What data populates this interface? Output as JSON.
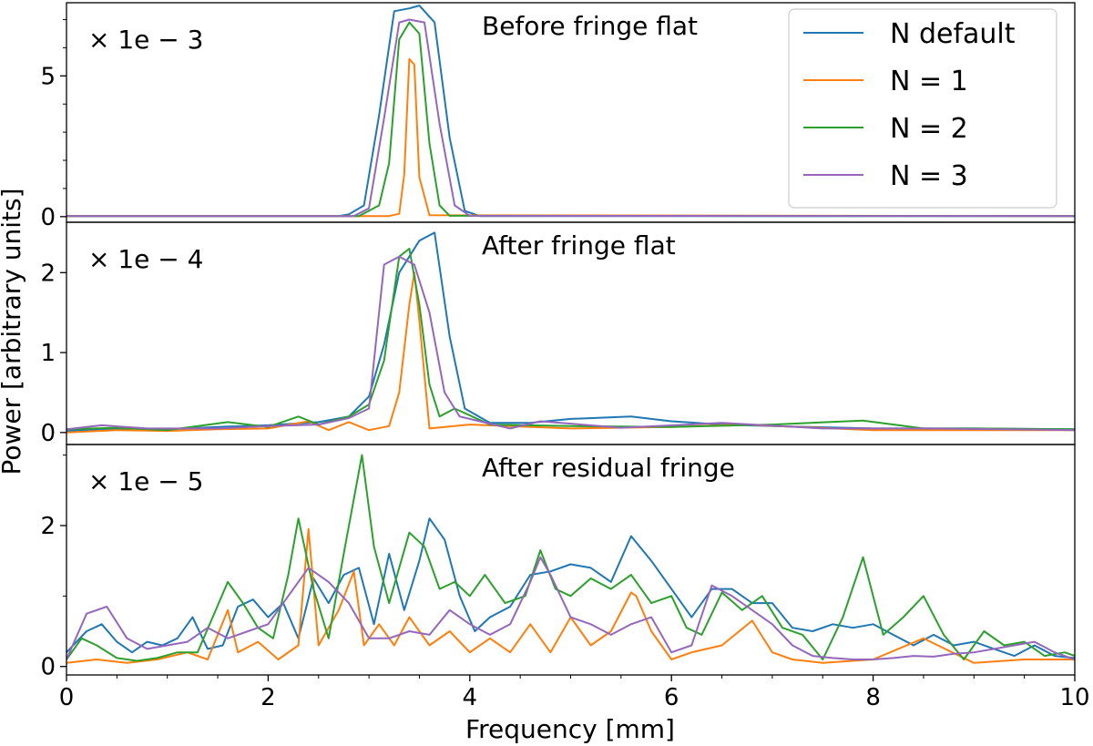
{
  "chart_data": {
    "type": "line",
    "xlabel": "Frequency [mm]",
    "ylabel": "Power [arbitrary units]",
    "xlim": [
      0,
      10
    ],
    "xticks": [
      0,
      2,
      4,
      6,
      8,
      10
    ],
    "xtick_labels": [
      "0",
      "2",
      "4",
      "6",
      "8",
      "10"
    ],
    "legend": {
      "location": "top-right",
      "entries": [
        {
          "name": "N default",
          "color": "#1f77b4"
        },
        {
          "name": "N = 1",
          "color": "#ff7f0e"
        },
        {
          "name": "N = 2",
          "color": "#2ca02c"
        },
        {
          "name": "N = 3",
          "color": "#9467bd"
        }
      ]
    },
    "panels": [
      {
        "title": "Before fringe flat",
        "scale_label": "× 1e − 3",
        "ylim": [
          -0.2,
          7.6
        ],
        "yticks": [
          0,
          5
        ],
        "ytick_labels": [
          "0",
          "5"
        ],
        "series": [
          {
            "name": "N default",
            "color": "#1f77b4",
            "x": [
              0,
              2.7,
              2.8,
              2.95,
              3.1,
              3.25,
              3.4,
              3.5,
              3.65,
              3.8,
              3.95,
              4.1,
              10
            ],
            "y": [
              0.02,
              0.02,
              0.08,
              0.4,
              3.6,
              7.3,
              7.4,
              7.5,
              6.9,
              2.8,
              0.2,
              0.02,
              0.02
            ]
          },
          {
            "name": "N = 1",
            "color": "#ff7f0e",
            "x": [
              0,
              3.2,
              3.3,
              3.35,
              3.4,
              3.45,
              3.5,
              3.6,
              10
            ],
            "y": [
              0.02,
              0.02,
              0.1,
              1.5,
              5.6,
              5.4,
              1.4,
              0.05,
              0.02
            ]
          },
          {
            "name": "N = 2",
            "color": "#2ca02c",
            "x": [
              0,
              2.9,
              3.1,
              3.2,
              3.3,
              3.4,
              3.5,
              3.6,
              3.7,
              3.8,
              10
            ],
            "y": [
              0.02,
              0.02,
              0.4,
              1.9,
              6.3,
              6.9,
              6.5,
              2.6,
              0.4,
              0.03,
              0.02
            ]
          },
          {
            "name": "N = 3",
            "color": "#9467bd",
            "x": [
              0,
              2.85,
              3.0,
              3.15,
              3.3,
              3.4,
              3.55,
              3.7,
              3.85,
              4.0,
              10
            ],
            "y": [
              0.02,
              0.02,
              0.3,
              3.5,
              6.9,
              7.0,
              6.9,
              3.3,
              0.4,
              0.03,
              0.02
            ]
          }
        ]
      },
      {
        "title": "After fringe flat",
        "scale_label": "× 1e − 4",
        "ylim": [
          -0.15,
          2.63
        ],
        "yticks": [
          0,
          1,
          2
        ],
        "ytick_labels": [
          "0",
          "1",
          "2"
        ],
        "series": [
          {
            "name": "N default",
            "color": "#1f77b4",
            "x": [
              0,
              0.5,
              1.0,
              1.5,
              2.0,
              2.5,
              2.8,
              3.0,
              3.15,
              3.3,
              3.5,
              3.65,
              3.8,
              3.95,
              4.2,
              4.6,
              5.0,
              5.6,
              6.0,
              6.5,
              7.0,
              8.0,
              9.0,
              10
            ],
            "y": [
              0.02,
              0.05,
              0.04,
              0.07,
              0.09,
              0.13,
              0.2,
              0.45,
              1.1,
              2.0,
              2.4,
              2.5,
              1.2,
              0.3,
              0.12,
              0.12,
              0.17,
              0.2,
              0.14,
              0.1,
              0.08,
              0.05,
              0.05,
              0.04
            ]
          },
          {
            "name": "N = 1",
            "color": "#ff7f0e",
            "x": [
              0,
              0.5,
              1.0,
              1.5,
              2.0,
              2.4,
              2.6,
              2.8,
              3.0,
              3.2,
              3.3,
              3.4,
              3.45,
              3.5,
              3.6,
              4.0,
              5.0,
              6.0,
              6.7,
              8.0,
              9.0,
              10
            ],
            "y": [
              0.0,
              0.03,
              0.02,
              0.04,
              0.05,
              0.14,
              0.03,
              0.13,
              0.03,
              0.08,
              0.5,
              1.6,
              2.0,
              1.4,
              0.05,
              0.1,
              0.05,
              0.07,
              0.1,
              0.03,
              0.03,
              0.03
            ]
          },
          {
            "name": "N = 2",
            "color": "#2ca02c",
            "x": [
              0,
              0.5,
              1.0,
              1.6,
              2.0,
              2.3,
              2.5,
              2.8,
              3.0,
              3.15,
              3.3,
              3.4,
              3.5,
              3.6,
              3.7,
              3.85,
              4.2,
              5.0,
              6.0,
              7.0,
              7.9,
              8.5,
              9.0,
              10
            ],
            "y": [
              0.04,
              0.06,
              0.03,
              0.13,
              0.07,
              0.2,
              0.1,
              0.2,
              0.35,
              0.9,
              2.2,
              2.3,
              1.6,
              0.6,
              0.2,
              0.3,
              0.1,
              0.08,
              0.07,
              0.1,
              0.15,
              0.05,
              0.05,
              0.04
            ]
          },
          {
            "name": "N = 3",
            "color": "#9467bd",
            "x": [
              0,
              0.35,
              0.8,
              1.5,
              2.0,
              2.5,
              2.8,
              3.0,
              3.15,
              3.3,
              3.45,
              3.6,
              3.75,
              3.9,
              4.4,
              4.7,
              5.5,
              6.5,
              7.5,
              8.5,
              10
            ],
            "y": [
              0.04,
              0.09,
              0.05,
              0.05,
              0.08,
              0.1,
              0.18,
              0.3,
              2.1,
              2.2,
              2.1,
              1.5,
              0.5,
              0.2,
              0.05,
              0.14,
              0.06,
              0.12,
              0.05,
              0.05,
              0.03
            ]
          }
        ]
      },
      {
        "title": "After residual fringe",
        "scale_label": "× 1e − 5",
        "ylim": [
          -0.12,
          3.15
        ],
        "yticks": [
          0,
          2
        ],
        "ytick_labels": [
          "0",
          "2"
        ],
        "series": [
          {
            "name": "N default",
            "color": "#1f77b4",
            "x": [
              0,
              0.2,
              0.35,
              0.5,
              0.65,
              0.8,
              0.95,
              1.1,
              1.25,
              1.4,
              1.55,
              1.7,
              1.85,
              2.0,
              2.15,
              2.3,
              2.45,
              2.6,
              2.75,
              2.9,
              3.05,
              3.2,
              3.35,
              3.5,
              3.6,
              3.75,
              3.9,
              4.05,
              4.2,
              4.4,
              4.6,
              4.8,
              5.0,
              5.2,
              5.4,
              5.6,
              5.8,
              6.0,
              6.2,
              6.4,
              6.6,
              6.8,
              7.0,
              7.2,
              7.4,
              7.6,
              7.8,
              8.0,
              8.2,
              8.4,
              8.6,
              8.8,
              9.0,
              9.2,
              9.4,
              9.6,
              9.8,
              10
            ],
            "y": [
              0.2,
              0.5,
              0.6,
              0.35,
              0.2,
              0.35,
              0.3,
              0.4,
              0.7,
              0.25,
              0.3,
              0.85,
              0.95,
              0.7,
              0.9,
              0.4,
              1.25,
              0.9,
              1.3,
              1.4,
              0.6,
              1.6,
              0.8,
              1.5,
              2.1,
              1.8,
              1.0,
              0.5,
              0.7,
              0.85,
              1.3,
              1.35,
              1.45,
              1.4,
              1.2,
              1.85,
              1.5,
              1.1,
              0.7,
              1.1,
              1.1,
              0.9,
              0.9,
              0.55,
              0.5,
              0.6,
              0.55,
              0.6,
              0.45,
              0.3,
              0.45,
              0.3,
              0.35,
              0.25,
              0.15,
              0.3,
              0.15,
              0.12
            ]
          },
          {
            "name": "N = 1",
            "color": "#ff7f0e",
            "x": [
              0,
              0.3,
              0.6,
              0.9,
              1.2,
              1.4,
              1.6,
              1.7,
              1.9,
              2.1,
              2.3,
              2.4,
              2.5,
              2.7,
              2.85,
              2.95,
              3.1,
              3.25,
              3.4,
              3.6,
              3.8,
              4.0,
              4.2,
              4.4,
              4.6,
              4.8,
              5.0,
              5.2,
              5.4,
              5.6,
              5.65,
              5.8,
              6.0,
              6.2,
              6.5,
              6.8,
              7.0,
              7.2,
              7.5,
              8.0,
              8.5,
              9.0,
              9.5,
              10
            ],
            "y": [
              0.05,
              0.1,
              0.05,
              0.1,
              0.2,
              0.1,
              0.8,
              0.2,
              0.35,
              0.1,
              0.3,
              1.95,
              0.3,
              0.8,
              1.35,
              0.3,
              0.6,
              0.3,
              0.7,
              0.3,
              0.5,
              0.2,
              0.4,
              0.2,
              0.6,
              0.2,
              0.7,
              0.3,
              0.5,
              1.05,
              1.0,
              0.5,
              0.1,
              0.2,
              0.3,
              0.65,
              0.2,
              0.1,
              0.05,
              0.1,
              0.4,
              0.05,
              0.1,
              0.1
            ]
          },
          {
            "name": "N = 2",
            "color": "#2ca02c",
            "x": [
              0,
              0.15,
              0.3,
              0.5,
              0.7,
              0.9,
              1.1,
              1.3,
              1.45,
              1.6,
              1.75,
              1.9,
              2.05,
              2.2,
              2.3,
              2.45,
              2.6,
              2.75,
              2.93,
              3.05,
              3.2,
              3.4,
              3.55,
              3.7,
              3.85,
              4.0,
              4.15,
              4.35,
              4.55,
              4.7,
              4.85,
              5.0,
              5.2,
              5.4,
              5.6,
              5.8,
              6.0,
              6.15,
              6.3,
              6.5,
              6.7,
              6.9,
              7.1,
              7.3,
              7.5,
              7.7,
              7.9,
              8.1,
              8.3,
              8.5,
              8.7,
              8.9,
              9.1,
              9.3,
              9.5,
              9.7,
              9.9,
              10
            ],
            "y": [
              0.1,
              0.4,
              0.3,
              0.12,
              0.08,
              0.12,
              0.2,
              0.2,
              0.7,
              1.2,
              0.9,
              0.55,
              0.4,
              1.3,
              2.1,
              1.1,
              0.4,
              1.6,
              3.0,
              1.7,
              0.9,
              1.9,
              1.7,
              1.1,
              1.2,
              1.0,
              1.3,
              0.9,
              1.0,
              1.65,
              1.1,
              1.0,
              1.25,
              1.1,
              1.3,
              0.9,
              1.0,
              0.55,
              0.45,
              1.05,
              0.8,
              1.0,
              0.55,
              0.45,
              0.1,
              0.7,
              1.55,
              0.45,
              0.7,
              1.0,
              0.45,
              0.1,
              0.5,
              0.3,
              0.35,
              0.15,
              0.2,
              0.15
            ]
          },
          {
            "name": "N = 3",
            "color": "#9467bd",
            "x": [
              0,
              0.2,
              0.4,
              0.6,
              0.8,
              1.0,
              1.2,
              1.4,
              1.6,
              1.8,
              2.0,
              2.2,
              2.4,
              2.6,
              2.8,
              3.0,
              3.2,
              3.4,
              3.6,
              3.8,
              4.0,
              4.2,
              4.4,
              4.6,
              4.7,
              4.8,
              5.0,
              5.2,
              5.4,
              5.6,
              5.8,
              6.0,
              6.2,
              6.4,
              6.6,
              6.8,
              7.0,
              7.2,
              7.4,
              7.6,
              7.8,
              8.0,
              8.2,
              8.4,
              8.6,
              8.8,
              9.0,
              9.2,
              9.4,
              9.6,
              9.8,
              10
            ],
            "y": [
              0.1,
              0.75,
              0.85,
              0.4,
              0.25,
              0.3,
              0.35,
              0.55,
              0.4,
              0.5,
              0.6,
              1.0,
              1.4,
              1.2,
              0.9,
              0.4,
              0.4,
              0.5,
              0.45,
              0.8,
              0.6,
              0.45,
              0.6,
              1.2,
              1.55,
              1.3,
              0.7,
              0.6,
              0.45,
              0.6,
              0.7,
              0.2,
              0.3,
              1.15,
              1.0,
              0.8,
              0.6,
              0.3,
              0.15,
              0.12,
              0.1,
              0.1,
              0.12,
              0.15,
              0.14,
              0.18,
              0.2,
              0.25,
              0.3,
              0.35,
              0.2,
              0.1
            ]
          }
        ]
      }
    ]
  }
}
